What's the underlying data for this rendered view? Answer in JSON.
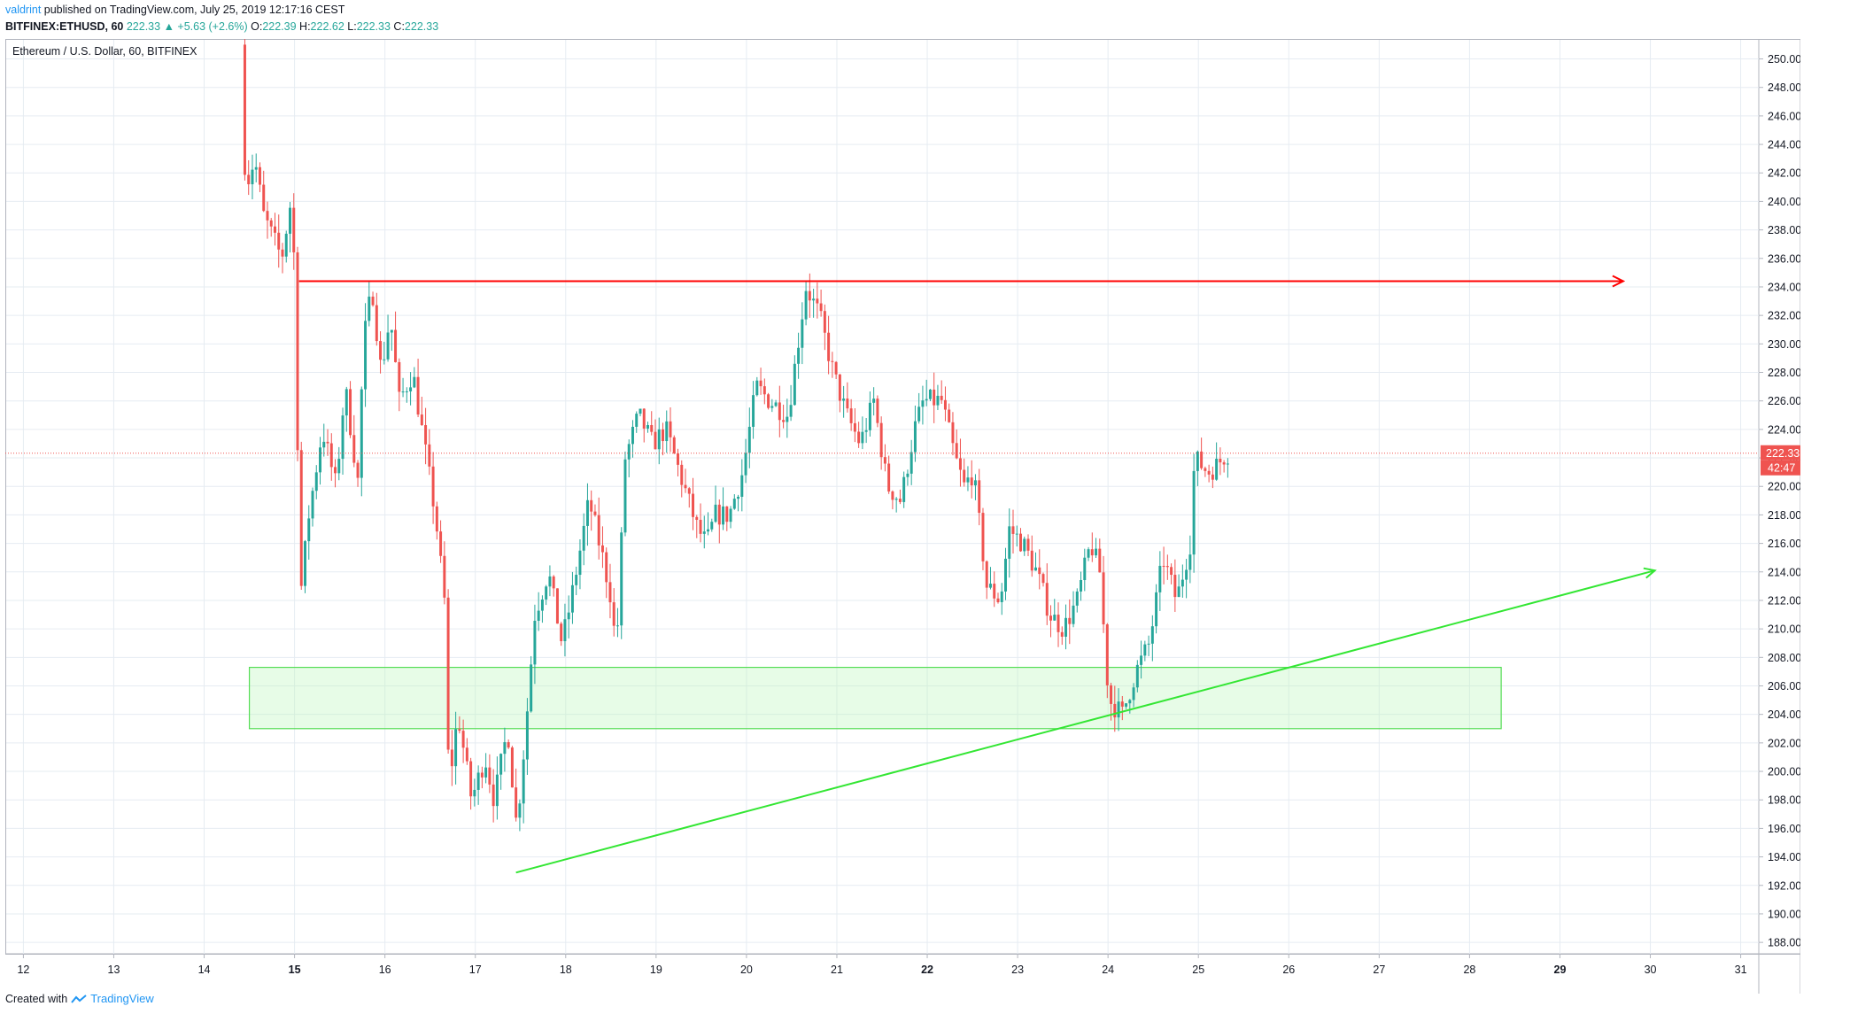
{
  "header": {
    "author": "valdrint",
    "published": "published on TradingView.com, July 25, 2019 12:17:16 CEST",
    "symbol": "BITFINEX:ETHUSD, 60",
    "last": "222.33",
    "change": "+5.63 (+2.6%)",
    "o_label": "O:",
    "o_value": "222.39",
    "h_label": "H:",
    "h_value": "222.62",
    "l_label": "L:",
    "l_value": "222.33",
    "c_label": "C:",
    "c_value": "222.33"
  },
  "footer": {
    "created": "Created with",
    "brand": "TradingView"
  },
  "colors": {
    "up": "#26a69a",
    "down": "#ef5350",
    "grid": "#e6ecf2",
    "resistance": "#ff0000",
    "support_zone": "#b9f6b9",
    "trendline": "#33e633",
    "price_label": "#ef5350"
  },
  "chart_data": {
    "type": "candlestick",
    "title": "Ethereum / U.S. Dollar, 60, BITFINEX",
    "timeframe": "60",
    "x_ticks": [
      {
        "label": "12",
        "day": 12,
        "bold": false
      },
      {
        "label": "13",
        "day": 13,
        "bold": false
      },
      {
        "label": "14",
        "day": 14,
        "bold": false
      },
      {
        "label": "15",
        "day": 15,
        "bold": true
      },
      {
        "label": "16",
        "day": 16,
        "bold": false
      },
      {
        "label": "17",
        "day": 17,
        "bold": false
      },
      {
        "label": "18",
        "day": 18,
        "bold": false
      },
      {
        "label": "19",
        "day": 19,
        "bold": false
      },
      {
        "label": "20",
        "day": 20,
        "bold": false
      },
      {
        "label": "21",
        "day": 21,
        "bold": false
      },
      {
        "label": "22",
        "day": 22,
        "bold": true
      },
      {
        "label": "23",
        "day": 23,
        "bold": false
      },
      {
        "label": "24",
        "day": 24,
        "bold": false
      },
      {
        "label": "25",
        "day": 25,
        "bold": false
      },
      {
        "label": "26",
        "day": 26,
        "bold": false
      },
      {
        "label": "27",
        "day": 27,
        "bold": false
      },
      {
        "label": "28",
        "day": 28,
        "bold": false
      },
      {
        "label": "29",
        "day": 29,
        "bold": true
      },
      {
        "label": "30",
        "day": 30,
        "bold": false
      },
      {
        "label": "31",
        "day": 31,
        "bold": false
      }
    ],
    "x_range_days": [
      11.8,
      31.2
    ],
    "y_ticks": [
      "188.00",
      "190.00",
      "192.00",
      "194.00",
      "196.00",
      "198.00",
      "200.00",
      "202.00",
      "204.00",
      "206.00",
      "208.00",
      "210.00",
      "212.00",
      "214.00",
      "216.00",
      "218.00",
      "220.00",
      "222.00",
      "224.00",
      "226.00",
      "228.00",
      "230.00",
      "232.00",
      "234.00",
      "236.00",
      "238.00",
      "240.00",
      "242.00",
      "244.00",
      "246.00",
      "248.00",
      "250.00"
    ],
    "y_range": [
      187.2,
      251.4
    ],
    "grid": true,
    "last_price": 222.33,
    "last_price_label": "222.33",
    "countdown_label": "42:47",
    "price_path_anchors": [
      [
        14.45,
        251.0
      ],
      [
        14.5,
        241.0
      ],
      [
        14.6,
        243.0
      ],
      [
        14.7,
        239.0
      ],
      [
        14.8,
        237.5
      ],
      [
        14.9,
        236.0
      ],
      [
        15.0,
        240.0
      ],
      [
        15.05,
        234.5
      ],
      [
        15.1,
        212.0
      ],
      [
        15.2,
        218.0
      ],
      [
        15.35,
        224.0
      ],
      [
        15.5,
        220.0
      ],
      [
        15.6,
        227.0
      ],
      [
        15.75,
        220.0
      ],
      [
        15.8,
        230.0
      ],
      [
        15.9,
        234.0
      ],
      [
        16.0,
        228.0
      ],
      [
        16.1,
        232.0
      ],
      [
        16.2,
        226.0
      ],
      [
        16.35,
        228.0
      ],
      [
        16.5,
        222.0
      ],
      [
        16.6,
        218.0
      ],
      [
        16.7,
        212.0
      ],
      [
        16.75,
        199.0
      ],
      [
        16.85,
        204.0
      ],
      [
        17.0,
        198.0
      ],
      [
        17.15,
        201.0
      ],
      [
        17.25,
        198.0
      ],
      [
        17.4,
        203.0
      ],
      [
        17.5,
        196.0
      ],
      [
        17.6,
        203.0
      ],
      [
        17.7,
        211.0
      ],
      [
        17.85,
        214.0
      ],
      [
        18.0,
        209.0
      ],
      [
        18.1,
        212.0
      ],
      [
        18.3,
        219.0
      ],
      [
        18.45,
        215.0
      ],
      [
        18.55,
        212.0
      ],
      [
        18.6,
        208.0
      ],
      [
        18.7,
        222.0
      ],
      [
        18.85,
        225.0
      ],
      [
        19.0,
        223.0
      ],
      [
        19.15,
        224.0
      ],
      [
        19.3,
        221.0
      ],
      [
        19.4,
        219.0
      ],
      [
        19.5,
        217.0
      ],
      [
        19.6,
        216.0
      ],
      [
        19.7,
        218.0
      ],
      [
        19.85,
        218.0
      ],
      [
        20.0,
        221.0
      ],
      [
        20.15,
        227.0
      ],
      [
        20.3,
        226.0
      ],
      [
        20.5,
        225.0
      ],
      [
        20.7,
        234.0
      ],
      [
        20.85,
        232.0
      ],
      [
        21.0,
        228.0
      ],
      [
        21.15,
        225.0
      ],
      [
        21.3,
        223.0
      ],
      [
        21.45,
        226.0
      ],
      [
        21.6,
        220.0
      ],
      [
        21.75,
        219.0
      ],
      [
        21.9,
        224.0
      ],
      [
        22.0,
        226.0
      ],
      [
        22.2,
        226.0
      ],
      [
        22.35,
        222.0
      ],
      [
        22.45,
        220.0
      ],
      [
        22.55,
        221.0
      ],
      [
        22.7,
        213.0
      ],
      [
        22.85,
        212.0
      ],
      [
        22.95,
        217.0
      ],
      [
        23.1,
        216.0
      ],
      [
        23.25,
        214.0
      ],
      [
        23.4,
        211.0
      ],
      [
        23.55,
        210.0
      ],
      [
        23.7,
        212.0
      ],
      [
        23.85,
        216.0
      ],
      [
        23.95,
        214.0
      ],
      [
        24.05,
        205.0
      ],
      [
        24.2,
        204.0
      ],
      [
        24.35,
        207.0
      ],
      [
        24.5,
        209.0
      ],
      [
        24.65,
        215.0
      ],
      [
        24.8,
        212.0
      ],
      [
        24.95,
        216.0
      ],
      [
        25.0,
        222.0
      ],
      [
        25.15,
        221.0
      ],
      [
        25.25,
        221.5
      ],
      [
        25.35,
        222.33
      ]
    ],
    "annotations": {
      "resistance_line": {
        "price": 234.4,
        "from_day": 15.05,
        "to_day": 29.7,
        "color": "#ff0000",
        "arrow": true
      },
      "support_zone": {
        "price_low": 203.0,
        "price_high": 207.3,
        "from_day": 14.5,
        "to_day": 28.35
      },
      "trendline": {
        "from": [
          17.45,
          192.9
        ],
        "to": [
          30.05,
          214.1
        ],
        "color": "#33e633",
        "arrow": true
      }
    }
  }
}
